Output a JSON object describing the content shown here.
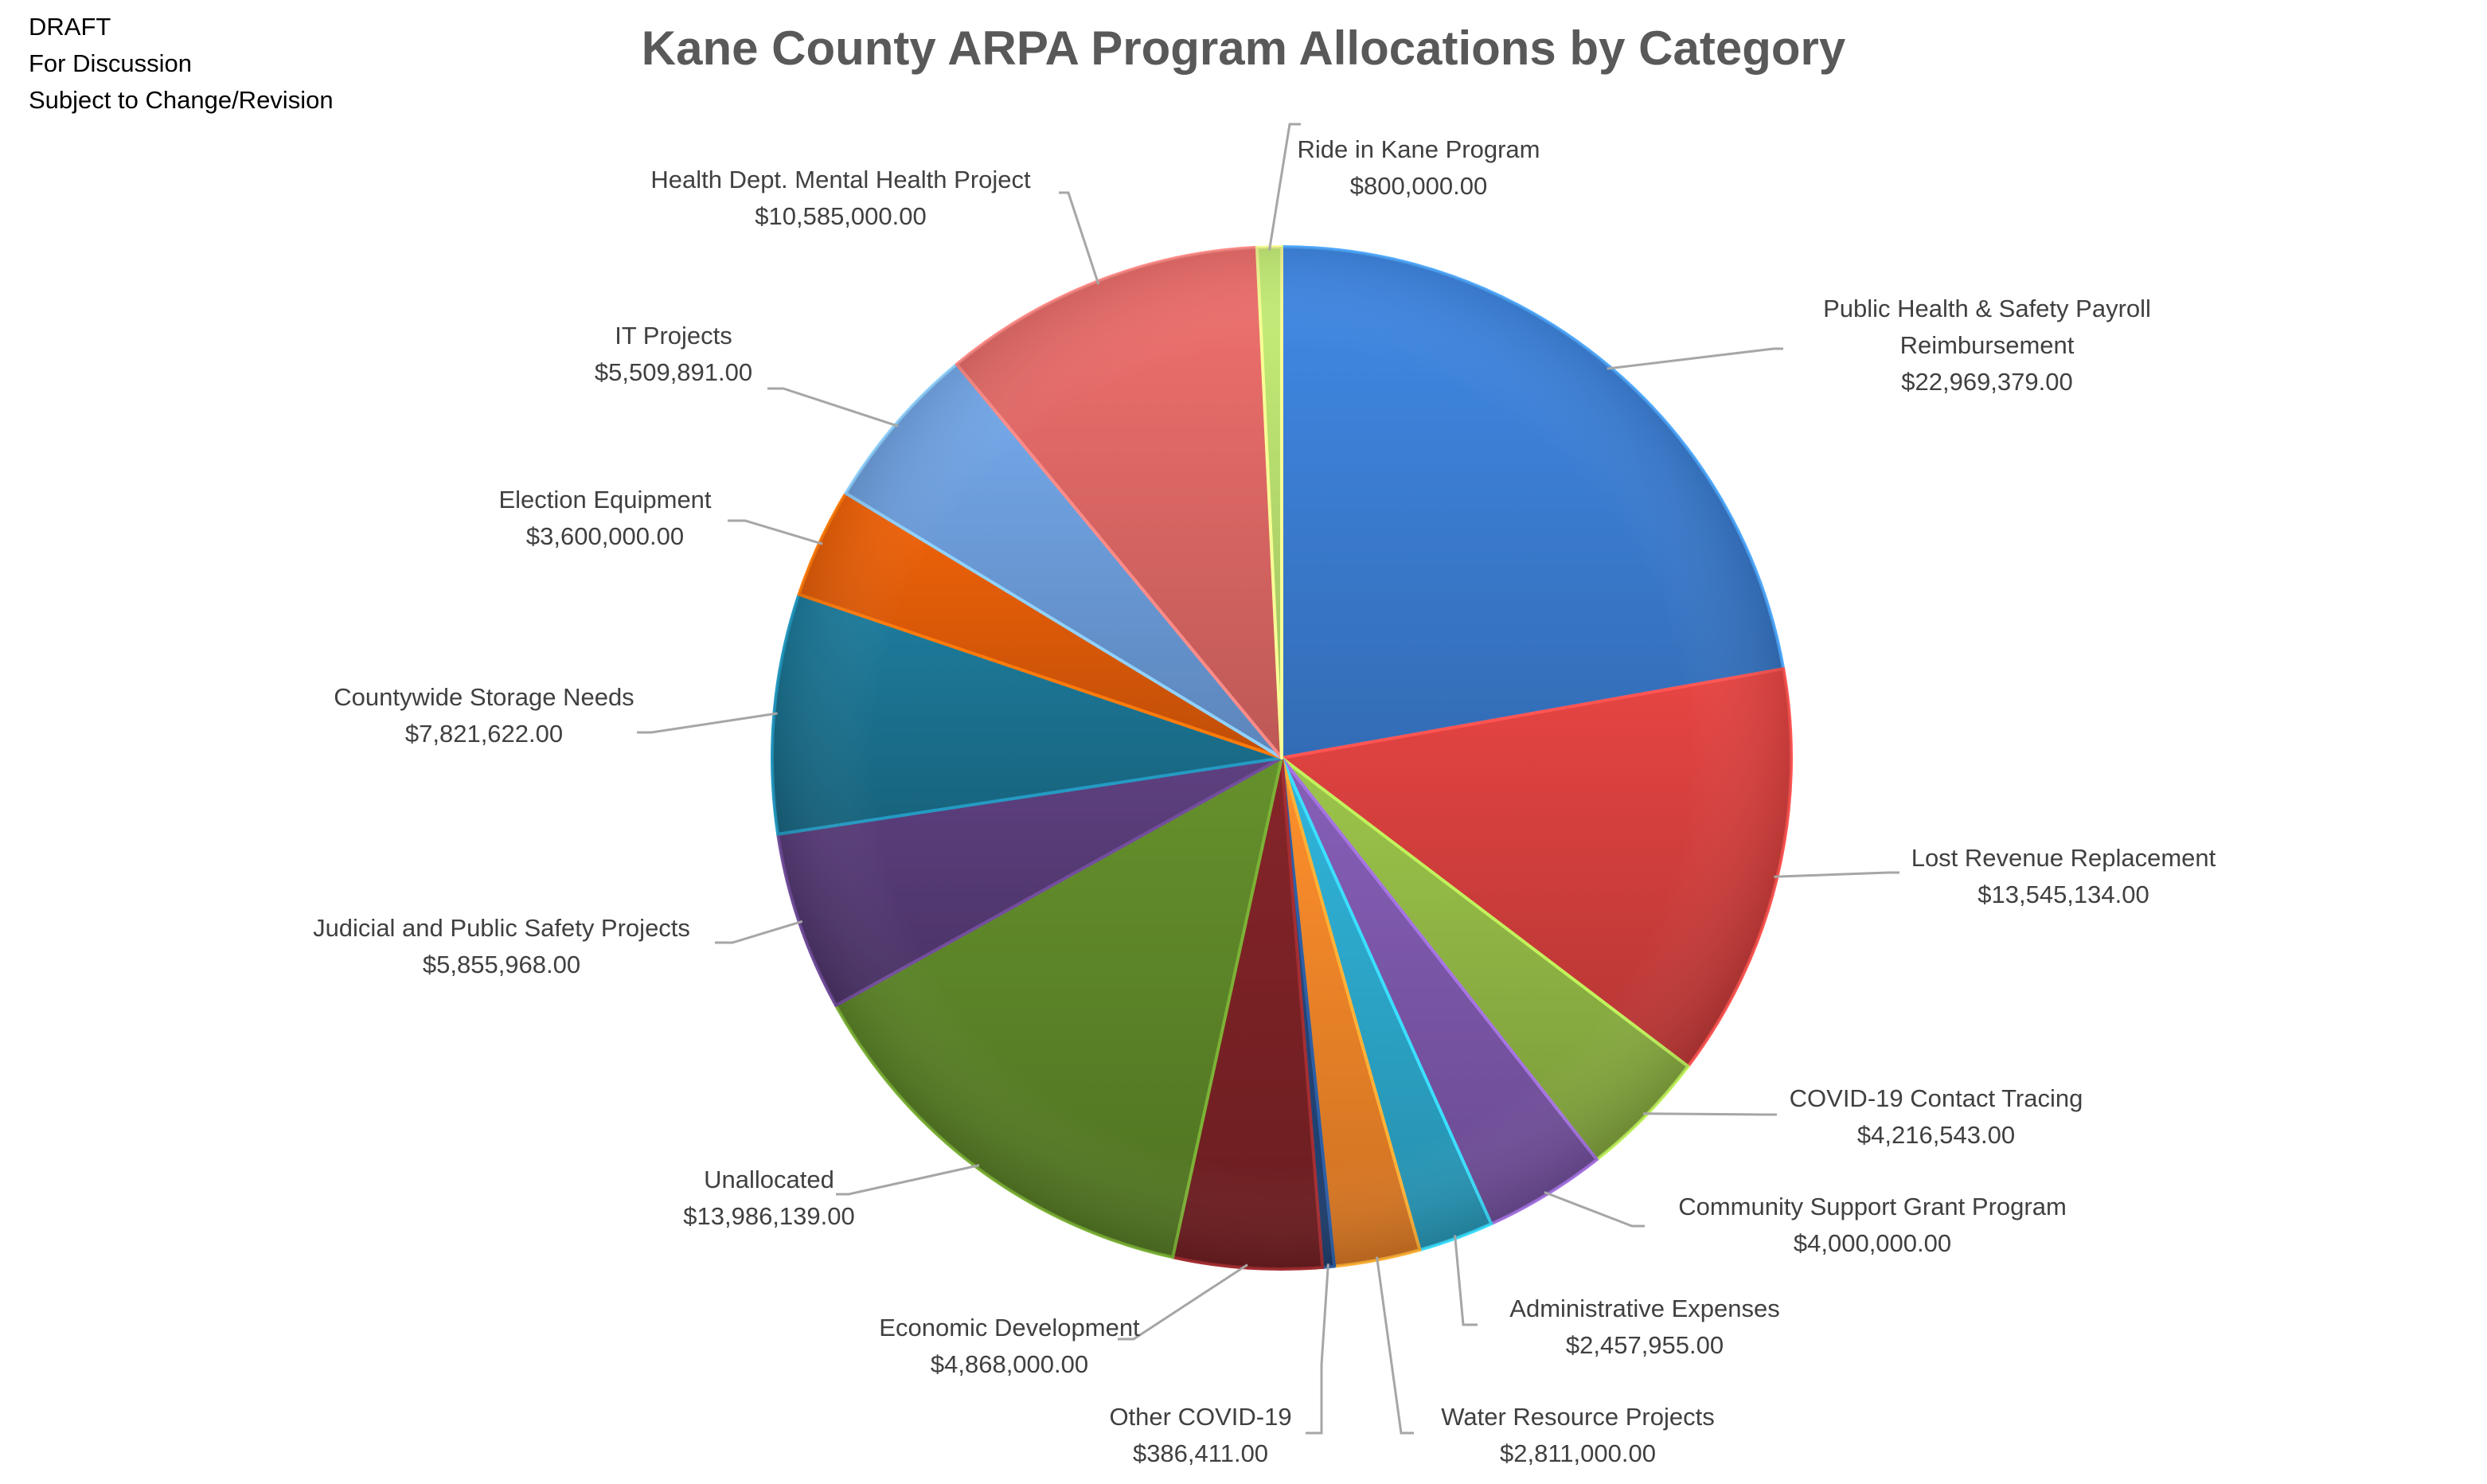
{
  "notes": [
    "DRAFT",
    "For Discussion",
    "Subject to Change/Revision"
  ],
  "chart_data": {
    "type": "pie",
    "title": "Kane County ARPA Program Allocations by Category",
    "slices": [
      {
        "label": [
          "Public Health & Safety Payroll",
          "Reimbursement"
        ],
        "value": 22969379,
        "value_label": "$22,969,379.00",
        "color": "#3B7DD3"
      },
      {
        "label": [
          "Lost Revenue Replacement"
        ],
        "value": 13545134,
        "value_label": "$13,545,134.00",
        "color": "#D23F3D"
      },
      {
        "label": [
          "COVID-19 Contact Tracing"
        ],
        "value": 4216543,
        "value_label": "$4,216,543.00",
        "color": "#8FB444"
      },
      {
        "label": [
          "Community Support Grant Program"
        ],
        "value": 4000000,
        "value_label": "$4,000,000.00",
        "color": "#7B56A8"
      },
      {
        "label": [
          "Administrative Expenses"
        ],
        "value": 2457955,
        "value_label": "$2,457,955.00",
        "color": "#2CA5C8"
      },
      {
        "label": [
          "Water Resource Projects"
        ],
        "value": 2811000,
        "value_label": "$2,811,000.00",
        "color": "#EE8328"
      },
      {
        "label": [
          "Other COVID-19"
        ],
        "value": 386411,
        "value_label": "$386,411.00",
        "color": "#23467A"
      },
      {
        "label": [
          "Economic Development"
        ],
        "value": 4868000,
        "value_label": "$4,868,000.00",
        "color": "#7A2225"
      },
      {
        "label": [
          "Unallocated"
        ],
        "value": 13986139,
        "value_label": "$13,986,139.00",
        "color": "#5C8428"
      },
      {
        "label": [
          "Judicial and Public Safety Projects"
        ],
        "value": 5855968,
        "value_label": "$5,855,968.00",
        "color": "#553A74"
      },
      {
        "label": [
          "Countywide Storage Needs"
        ],
        "value": 7821622,
        "value_label": "$7,821,622.00",
        "color": "#1B7290"
      },
      {
        "label": [
          "Election Equipment"
        ],
        "value": 3600000,
        "value_label": "$3,600,000.00",
        "color": "#DE5B08"
      },
      {
        "label": [
          "IT Projects"
        ],
        "value": 5509891,
        "value_label": "$5,509,891.00",
        "color": "#6B9BD8"
      },
      {
        "label": [
          "Health Dept. Mental Health Project"
        ],
        "value": 10585000,
        "value_label": "$10,585,000.00",
        "color": "#DC6764"
      },
      {
        "label": [
          "Ride in Kane Program"
        ],
        "value": 800000,
        "value_label": "$800,000.00",
        "color": "#B7DC6E"
      }
    ]
  }
}
